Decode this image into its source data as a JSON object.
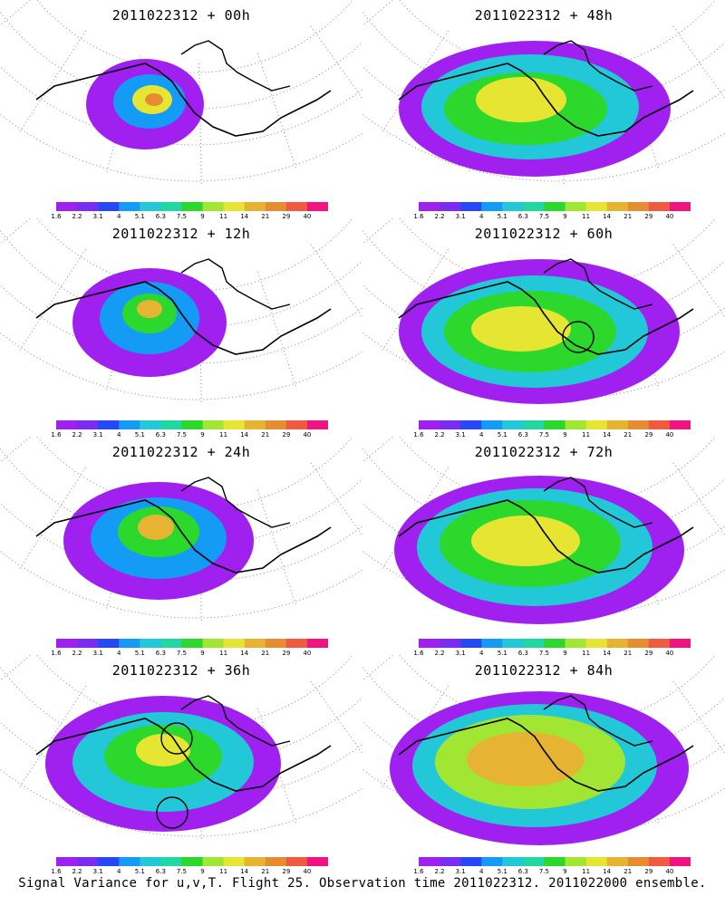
{
  "panels": [
    {
      "title": "2011022312 + 00h"
    },
    {
      "title": "2011022312 + 48h"
    },
    {
      "title": "2011022312 + 12h"
    },
    {
      "title": "2011022312 + 60h"
    },
    {
      "title": "2011022312 + 24h"
    },
    {
      "title": "2011022312 + 72h"
    },
    {
      "title": "2011022312 + 36h"
    },
    {
      "title": "2011022312 + 84h"
    }
  ],
  "colorbar": {
    "labels": [
      "1.6",
      "2.2",
      "3.1",
      "4",
      "5.1",
      "6.3",
      "7.5",
      "9",
      "11",
      "14",
      "21",
      "29",
      "40"
    ],
    "colors": [
      "#a020f0",
      "#7a2df0",
      "#2848f5",
      "#149bf5",
      "#22c8d8",
      "#20d8a0",
      "#2cd82c",
      "#a0e632",
      "#e6e632",
      "#e6b432",
      "#e68c32",
      "#f05a40",
      "#f01482"
    ]
  },
  "footer": "Signal Variance for u,v,T. Flight 25. Observation time 2011022312. 2011022000 ensemble."
}
